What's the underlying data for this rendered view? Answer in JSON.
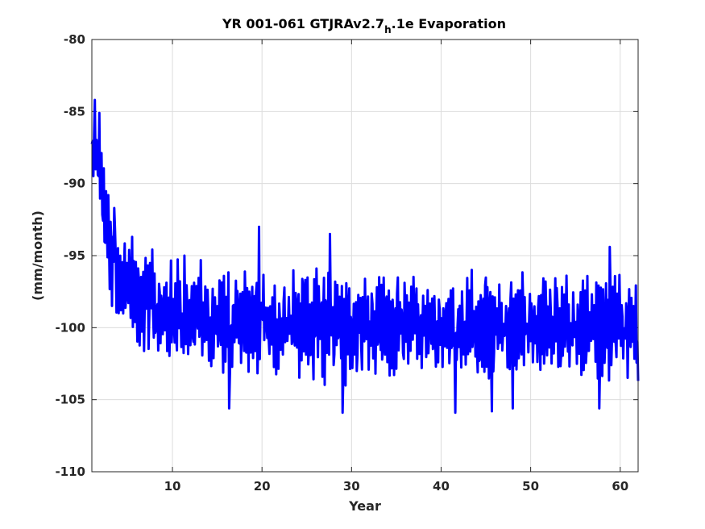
{
  "chart_data": {
    "type": "line",
    "title": {
      "main": "YR 001-061 GTJRAv2.7",
      "subscript": "h",
      "suffix": ".1e Evaporation"
    },
    "xlabel": "Year",
    "ylabel": "(mm/month)",
    "xlim": [
      1,
      62
    ],
    "ylim": [
      -110,
      -80
    ],
    "xticks": [
      10,
      20,
      30,
      40,
      50,
      60
    ],
    "yticks": [
      -110,
      -105,
      -100,
      -95,
      -90,
      -85,
      -80
    ],
    "grid": true,
    "line_color": "#0000ff",
    "series": [
      {
        "trend": [
          [
            1.0,
            -88.5
          ],
          [
            1.5,
            -88.0
          ],
          [
            2.0,
            -90.0
          ],
          [
            2.5,
            -92.5
          ],
          [
            3.0,
            -94.5
          ],
          [
            3.5,
            -95.8
          ],
          [
            4.0,
            -96.5
          ],
          [
            5.0,
            -97.3
          ],
          [
            6.0,
            -97.9
          ],
          [
            7.0,
            -98.4
          ],
          [
            8.0,
            -98.8
          ],
          [
            10.0,
            -99.2
          ],
          [
            12.0,
            -99.4
          ],
          [
            15.0,
            -99.6
          ],
          [
            20.0,
            -99.7
          ],
          [
            62.0,
            -99.9
          ]
        ],
        "seasonal_amplitude": 2.4,
        "noise_amplitude": 1.0,
        "samples_per_year": 12,
        "peaks": [
          [
            1.3,
            -84.2
          ],
          [
            1.8,
            -85.1
          ],
          [
            2.8,
            -90.8
          ],
          [
            3.5,
            -91.7
          ],
          [
            5.5,
            -93.7
          ],
          [
            11.3,
            -95.0
          ],
          [
            19.7,
            -93.0
          ],
          [
            27.6,
            -93.5
          ],
          [
            58.8,
            -94.4
          ]
        ],
        "troughs": [
          [
            16.3,
            -105.6
          ],
          [
            29.0,
            -105.9
          ],
          [
            41.6,
            -105.9
          ],
          [
            45.7,
            -105.8
          ],
          [
            48.0,
            -105.6
          ],
          [
            57.7,
            -105.6
          ],
          [
            62.0,
            -103.7
          ]
        ]
      }
    ]
  }
}
